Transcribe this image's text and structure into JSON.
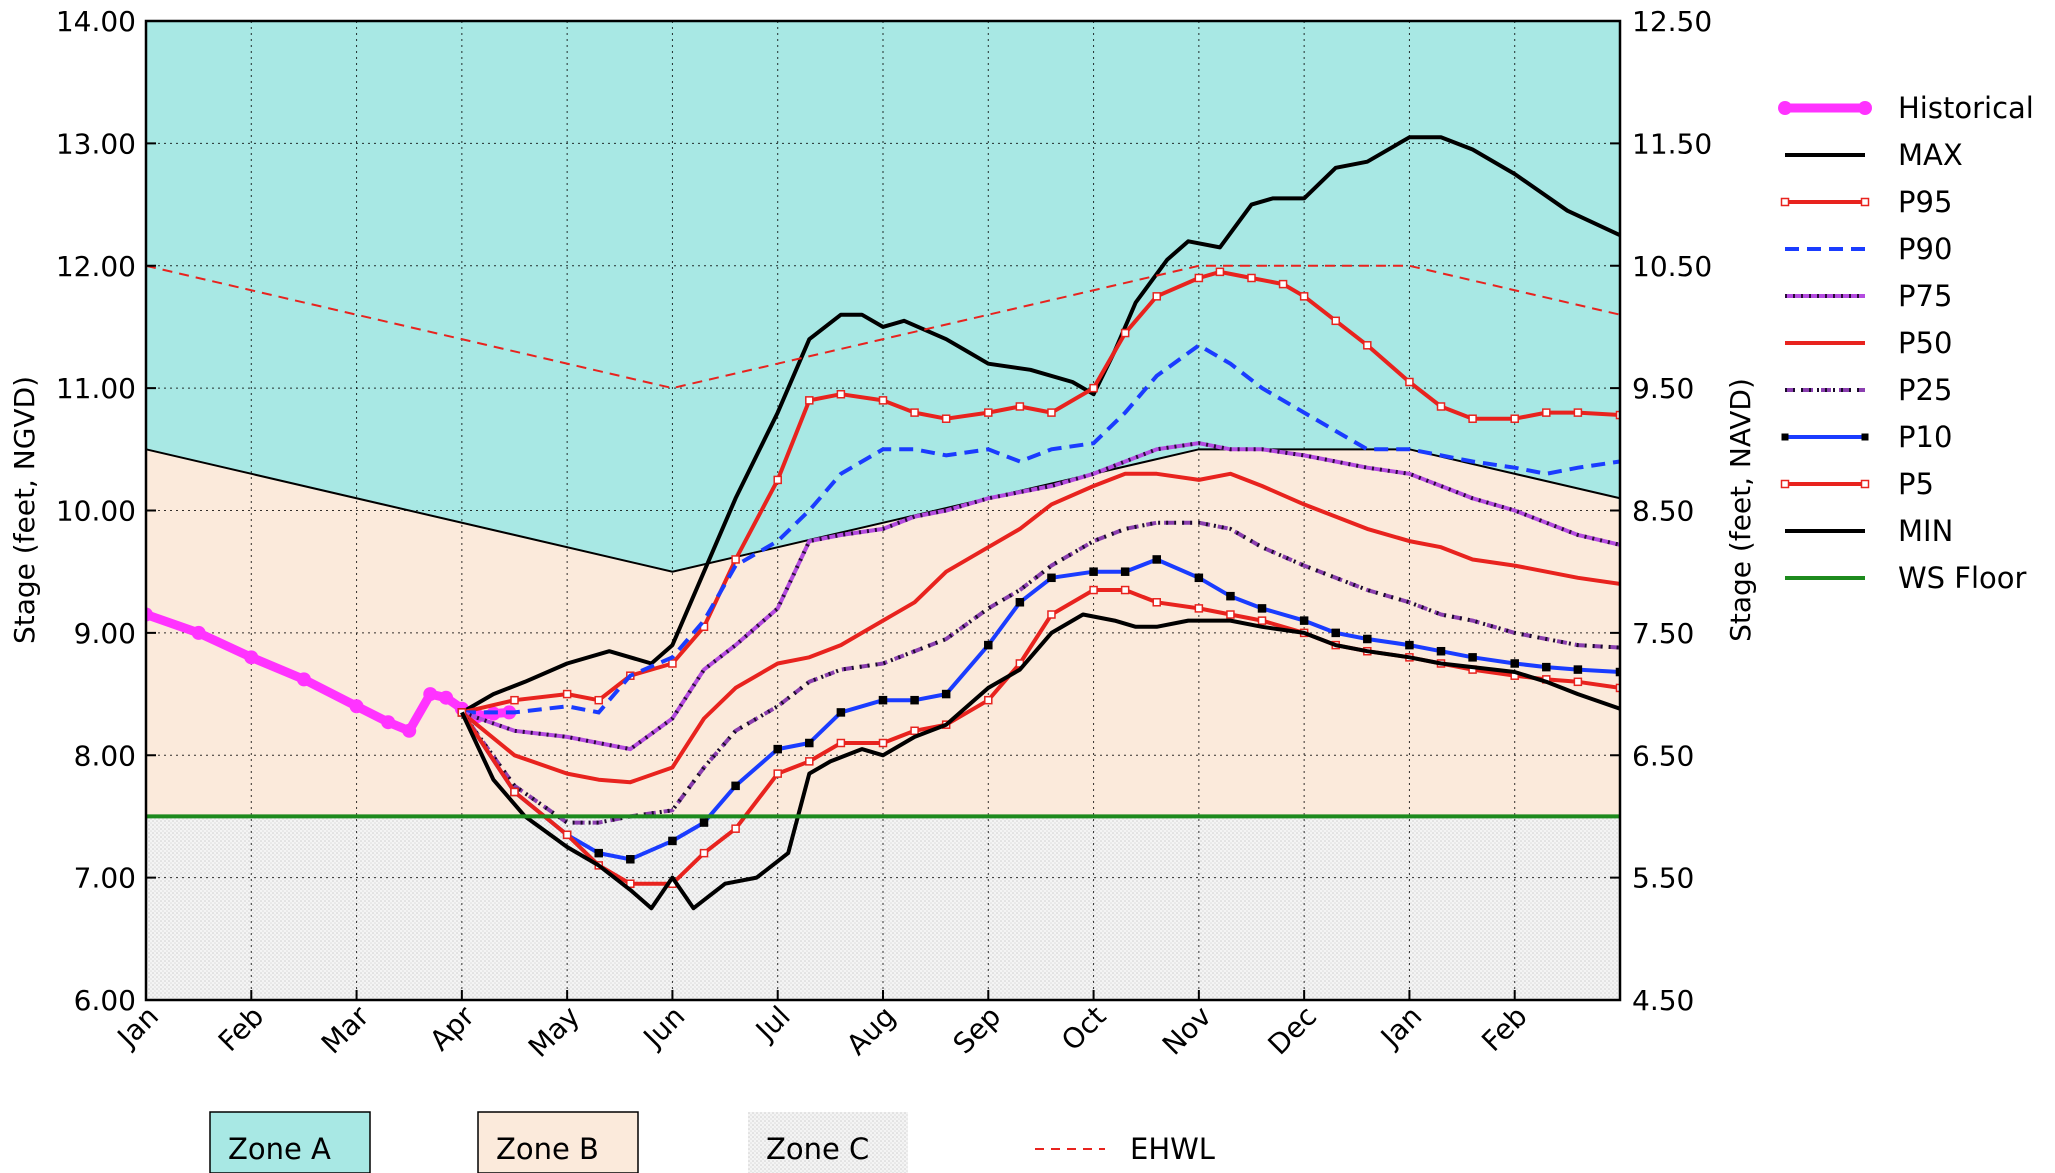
{
  "chart_data": {
    "type": "line",
    "x_unit": "month (0 = Jan of current year; 14 = end of Feb next year)",
    "xlim": [
      0,
      14
    ],
    "ylim": [
      6.0,
      14.0
    ],
    "y2lim": [
      4.5,
      12.5
    ],
    "xticks": [
      0,
      1,
      2,
      3,
      4,
      5,
      6,
      7,
      8,
      9,
      10,
      11,
      12,
      13
    ],
    "xtick_labels": [
      "Jan",
      "Feb",
      "Mar",
      "Apr",
      "May",
      "Jun",
      "Jul",
      "Aug",
      "Sep",
      "Oct",
      "Nov",
      "Dec",
      "Jan",
      "Feb"
    ],
    "yticks": [
      6,
      7,
      8,
      9,
      10,
      11,
      12,
      13,
      14
    ],
    "ytick_labels": [
      "6.00",
      "7.00",
      "8.00",
      "9.00",
      "10.00",
      "11.00",
      "12.00",
      "13.00",
      "14.00"
    ],
    "y2tick_labels": [
      "4.50",
      "5.50",
      "6.50",
      "7.50",
      "8.50",
      "9.50",
      "10.50",
      "11.50",
      "12.50"
    ],
    "ylabel": "Stage (feet, NGVD)",
    "y2label": "Stage (feet, NAVD)",
    "grid": true,
    "legend_position": "right",
    "zones": {
      "zone_a_fill": "#a8e8e4",
      "zone_b_fill": "#fbeadb",
      "zone_c_fill": "#ebebeb",
      "zone_ab_boundary": {
        "x": [
          0,
          5,
          10,
          12,
          14
        ],
        "y": [
          10.5,
          9.5,
          10.5,
          10.5,
          10.1
        ]
      },
      "ws_floor": 7.5
    },
    "bottom_legend": [
      {
        "label": "Zone A",
        "type": "patch",
        "color": "#a8e8e4"
      },
      {
        "label": "Zone B",
        "type": "patch",
        "color": "#fbeadb"
      },
      {
        "label": "Zone C",
        "type": "patch",
        "color": "#ebebeb"
      },
      {
        "label": "EHWL",
        "type": "dashed",
        "color": "#e8231e"
      }
    ],
    "series": [
      {
        "name": "Historical",
        "color": "#ff33ff",
        "style": "thick-dot",
        "x": [
          0,
          0.5,
          1,
          1.5,
          2,
          2.3,
          2.5,
          2.7,
          2.85,
          3.0,
          3.15,
          3.3,
          3.45
        ],
        "y": [
          9.15,
          9.0,
          8.8,
          8.62,
          8.4,
          8.27,
          8.2,
          8.5,
          8.47,
          8.38,
          8.32,
          8.34,
          8.35
        ]
      },
      {
        "name": "MAX",
        "color": "#000000",
        "style": "solid",
        "x": [
          3,
          3.3,
          3.6,
          4,
          4.4,
          4.8,
          5,
          5.3,
          5.6,
          6,
          6.3,
          6.6,
          6.8,
          7,
          7.2,
          7.6,
          7.8,
          8,
          8.4,
          8.8,
          9,
          9.2,
          9.4,
          9.7,
          9.9,
          10.2,
          10.5,
          10.7,
          11,
          11.3,
          11.6,
          12,
          12.3,
          12.6,
          13,
          13.5,
          14
        ],
        "y": [
          8.35,
          8.5,
          8.6,
          8.75,
          8.85,
          8.75,
          8.9,
          9.5,
          10.1,
          10.8,
          11.4,
          11.6,
          11.6,
          11.5,
          11.55,
          11.4,
          11.3,
          11.2,
          11.15,
          11.05,
          10.95,
          11.3,
          11.7,
          12.05,
          12.2,
          12.15,
          12.5,
          12.55,
          12.55,
          12.8,
          12.85,
          13.05,
          13.05,
          12.95,
          12.75,
          12.45,
          12.25
        ]
      },
      {
        "name": "P95",
        "color": "#e8231e",
        "style": "square-marker",
        "x": [
          3,
          3.5,
          4,
          4.3,
          4.6,
          5,
          5.3,
          5.6,
          6,
          6.3,
          6.6,
          7,
          7.3,
          7.6,
          8,
          8.3,
          8.6,
          9,
          9.3,
          9.6,
          10,
          10.2,
          10.5,
          10.8,
          11,
          11.3,
          11.6,
          12,
          12.3,
          12.6,
          13,
          13.3,
          13.6,
          14
        ],
        "y": [
          8.35,
          8.45,
          8.5,
          8.45,
          8.65,
          8.75,
          9.05,
          9.6,
          10.25,
          10.9,
          10.95,
          10.9,
          10.8,
          10.75,
          10.8,
          10.85,
          10.8,
          11.0,
          11.45,
          11.75,
          11.9,
          11.95,
          11.9,
          11.85,
          11.75,
          11.55,
          11.35,
          11.05,
          10.85,
          10.75,
          10.75,
          10.8,
          10.8,
          10.78
        ]
      },
      {
        "name": "P90",
        "color": "#1a3cff",
        "style": "dashed",
        "x": [
          3,
          3.5,
          4,
          4.3,
          4.6,
          5,
          5.3,
          5.6,
          6,
          6.3,
          6.6,
          7,
          7.3,
          7.6,
          8,
          8.3,
          8.6,
          9,
          9.3,
          9.6,
          10,
          10.3,
          10.6,
          11,
          11.3,
          11.6,
          12,
          12.3,
          12.6,
          13,
          13.3,
          13.6,
          14
        ],
        "y": [
          8.35,
          8.35,
          8.4,
          8.35,
          8.65,
          8.8,
          9.1,
          9.55,
          9.75,
          10.0,
          10.3,
          10.5,
          10.5,
          10.45,
          10.5,
          10.4,
          10.5,
          10.55,
          10.8,
          11.1,
          11.35,
          11.2,
          11.0,
          10.8,
          10.65,
          10.5,
          10.5,
          10.45,
          10.4,
          10.35,
          10.3,
          10.35,
          10.4
        ]
      },
      {
        "name": "P75",
        "color": "#b44be0",
        "style": "dotted-solid",
        "x": [
          3,
          3.5,
          4,
          4.3,
          4.6,
          5,
          5.3,
          5.6,
          6,
          6.3,
          6.6,
          7,
          7.3,
          7.6,
          8,
          8.3,
          8.6,
          9,
          9.3,
          9.6,
          10,
          10.3,
          10.6,
          11,
          11.3,
          11.6,
          12,
          12.3,
          12.6,
          13,
          13.3,
          13.6,
          14
        ],
        "y": [
          8.35,
          8.2,
          8.15,
          8.1,
          8.05,
          8.3,
          8.7,
          8.9,
          9.2,
          9.75,
          9.8,
          9.85,
          9.95,
          10.0,
          10.1,
          10.15,
          10.2,
          10.3,
          10.4,
          10.5,
          10.55,
          10.5,
          10.5,
          10.45,
          10.4,
          10.35,
          10.3,
          10.2,
          10.1,
          10.0,
          9.9,
          9.8,
          9.72
        ]
      },
      {
        "name": "P50",
        "color": "#e8231e",
        "style": "solid",
        "x": [
          3,
          3.5,
          4,
          4.3,
          4.6,
          5,
          5.3,
          5.6,
          6,
          6.3,
          6.6,
          7,
          7.3,
          7.6,
          8,
          8.3,
          8.6,
          9,
          9.3,
          9.6,
          10,
          10.3,
          10.6,
          11,
          11.3,
          11.6,
          12,
          12.3,
          12.6,
          13,
          13.3,
          13.6,
          14
        ],
        "y": [
          8.35,
          8.0,
          7.85,
          7.8,
          7.78,
          7.9,
          8.3,
          8.55,
          8.75,
          8.8,
          8.9,
          9.1,
          9.25,
          9.5,
          9.7,
          9.85,
          10.05,
          10.2,
          10.3,
          10.3,
          10.25,
          10.3,
          10.2,
          10.05,
          9.95,
          9.85,
          9.75,
          9.7,
          9.6,
          9.55,
          9.5,
          9.45,
          9.4
        ]
      },
      {
        "name": "P25",
        "color": "#8b3fb0",
        "style": "dotted-dash",
        "x": [
          3,
          3.5,
          4,
          4.3,
          4.6,
          5,
          5.3,
          5.6,
          6,
          6.3,
          6.6,
          7,
          7.3,
          7.6,
          8,
          8.3,
          8.6,
          9,
          9.3,
          9.6,
          10,
          10.3,
          10.6,
          11,
          11.3,
          11.6,
          12,
          12.3,
          12.6,
          13,
          13.3,
          13.6,
          14
        ],
        "y": [
          8.35,
          7.75,
          7.45,
          7.45,
          7.5,
          7.55,
          7.9,
          8.2,
          8.4,
          8.6,
          8.7,
          8.75,
          8.85,
          8.95,
          9.2,
          9.35,
          9.55,
          9.75,
          9.85,
          9.9,
          9.9,
          9.85,
          9.7,
          9.55,
          9.45,
          9.35,
          9.25,
          9.15,
          9.1,
          9.0,
          8.95,
          8.9,
          8.88
        ]
      },
      {
        "name": "P10",
        "color": "#1a3cff",
        "style": "square-marker-dark",
        "x": [
          3,
          3.5,
          4,
          4.3,
          4.6,
          5,
          5.3,
          5.6,
          6,
          6.3,
          6.6,
          7,
          7.3,
          7.6,
          8,
          8.3,
          8.6,
          9,
          9.3,
          9.6,
          10,
          10.3,
          10.6,
          11,
          11.3,
          11.6,
          12,
          12.3,
          12.6,
          13,
          13.3,
          13.6,
          14
        ],
        "y": [
          8.35,
          7.7,
          7.35,
          7.2,
          7.15,
          7.3,
          7.45,
          7.75,
          8.05,
          8.1,
          8.35,
          8.45,
          8.45,
          8.5,
          8.9,
          9.25,
          9.45,
          9.5,
          9.5,
          9.6,
          9.45,
          9.3,
          9.2,
          9.1,
          9.0,
          8.95,
          8.9,
          8.85,
          8.8,
          8.75,
          8.72,
          8.7,
          8.68
        ]
      },
      {
        "name": "P5",
        "color": "#e8231e",
        "style": "square-marker",
        "x": [
          3,
          3.5,
          4,
          4.3,
          4.6,
          5,
          5.3,
          5.6,
          6,
          6.3,
          6.6,
          7,
          7.3,
          7.6,
          8,
          8.3,
          8.6,
          9,
          9.3,
          9.6,
          10,
          10.3,
          10.6,
          11,
          11.3,
          11.6,
          12,
          12.3,
          12.6,
          13,
          13.3,
          13.6,
          14
        ],
        "y": [
          8.35,
          7.7,
          7.35,
          7.1,
          6.95,
          6.95,
          7.2,
          7.4,
          7.85,
          7.95,
          8.1,
          8.1,
          8.2,
          8.25,
          8.45,
          8.75,
          9.15,
          9.35,
          9.35,
          9.25,
          9.2,
          9.15,
          9.1,
          9.0,
          8.9,
          8.85,
          8.8,
          8.75,
          8.7,
          8.65,
          8.62,
          8.6,
          8.55
        ]
      },
      {
        "name": "MIN",
        "color": "#000000",
        "style": "solid",
        "x": [
          3,
          3.3,
          3.6,
          4,
          4.3,
          4.6,
          4.8,
          5,
          5.2,
          5.5,
          5.8,
          6.1,
          6.3,
          6.5,
          6.8,
          7,
          7.3,
          7.6,
          8,
          8.3,
          8.6,
          8.9,
          9.2,
          9.4,
          9.6,
          9.9,
          10.1,
          10.3,
          10.6,
          11,
          11.3,
          11.6,
          12,
          12.3,
          12.6,
          13,
          13.3,
          13.6,
          14
        ],
        "y": [
          8.35,
          7.8,
          7.5,
          7.25,
          7.1,
          6.9,
          6.75,
          7.0,
          6.75,
          6.95,
          7.0,
          7.2,
          7.85,
          7.95,
          8.05,
          8.0,
          8.15,
          8.25,
          8.55,
          8.7,
          9.0,
          9.15,
          9.1,
          9.05,
          9.05,
          9.1,
          9.1,
          9.1,
          9.05,
          9.0,
          8.9,
          8.85,
          8.8,
          8.75,
          8.72,
          8.68,
          8.6,
          8.5,
          8.38
        ]
      },
      {
        "name": "WS Floor",
        "color": "#1d8a1d",
        "style": "solid",
        "x": [
          0,
          14
        ],
        "y": [
          7.5,
          7.5
        ]
      },
      {
        "name": "EHWL",
        "color": "#e8231e",
        "style": "thin-dashed",
        "legend": false,
        "x": [
          0,
          5,
          10,
          12,
          14
        ],
        "y": [
          12.0,
          11.0,
          12.0,
          12.0,
          11.6
        ]
      }
    ]
  }
}
